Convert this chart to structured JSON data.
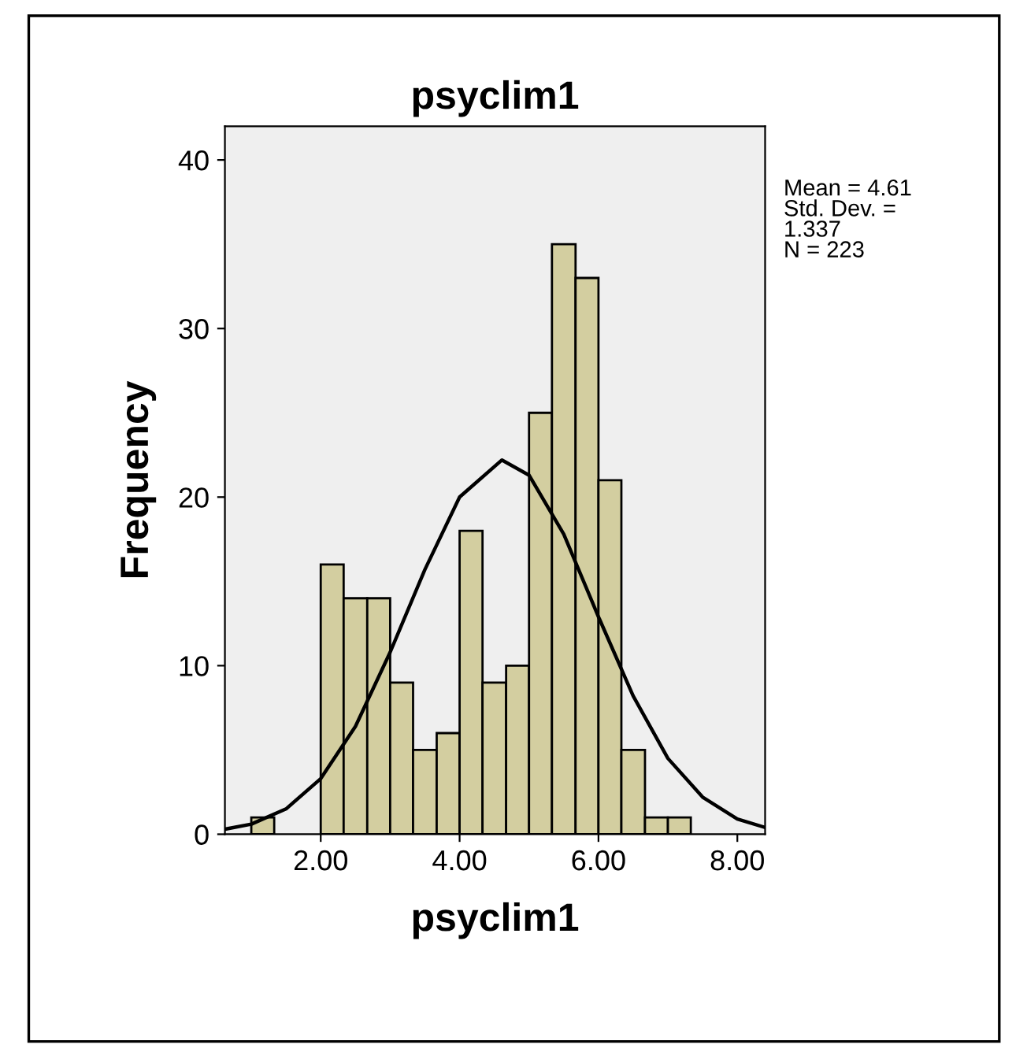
{
  "chart_data": {
    "type": "histogram",
    "title": "psyclim1",
    "xlabel": "psyclim1",
    "ylabel": "Frequency",
    "bins": [
      1.0,
      1.33,
      2.0,
      2.33,
      2.67,
      3.0,
      3.33,
      3.67,
      4.0,
      4.33,
      4.67,
      5.0,
      5.33,
      5.67,
      6.0,
      6.33,
      6.67,
      7.0,
      7.33
    ],
    "series": [
      {
        "color": "#d3cea0",
        "values": [
          1,
          0,
          16,
          14,
          14,
          9,
          5,
          6,
          18,
          9,
          10,
          25,
          35,
          33,
          21,
          5,
          1,
          1
        ]
      },
      {
        "type": "line",
        "color": "#000000",
        "x": [
          0.62,
          1.0,
          1.5,
          2.0,
          2.5,
          3.0,
          3.5,
          4.0,
          4.61,
          5.0,
          5.5,
          6.0,
          6.5,
          7.0,
          7.5,
          8.0,
          8.4
        ],
        "values": [
          0.3,
          0.6,
          1.5,
          3.3,
          6.4,
          10.8,
          15.7,
          20.0,
          22.2,
          21.3,
          17.8,
          12.9,
          8.2,
          4.5,
          2.2,
          0.9,
          0.4
        ]
      }
    ],
    "xlim": [
      0.62,
      8.4
    ],
    "ylim": [
      0,
      42
    ],
    "xticks": [
      {
        "value": 2,
        "label": "2.00"
      },
      {
        "value": 4,
        "label": "4.00"
      },
      {
        "value": 6,
        "label": "6.00"
      },
      {
        "value": 8,
        "label": "8.00"
      }
    ],
    "yticks": [
      0,
      10,
      20,
      30,
      40
    ],
    "grid": false,
    "legend": false,
    "marker": "none",
    "line_style": "solid",
    "annotations": [
      "Mean = 4.61\nStd. Dev. =\n1.337\nN = 223"
    ]
  }
}
